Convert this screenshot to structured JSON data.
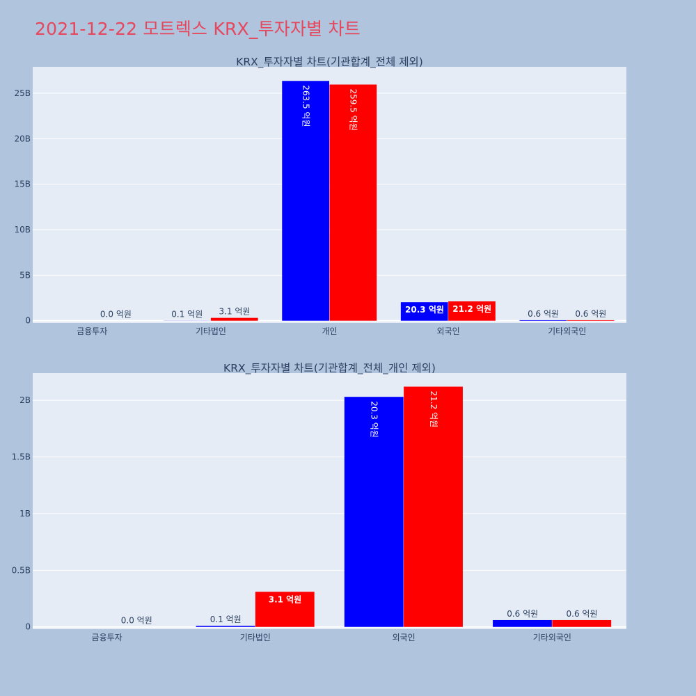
{
  "page_title": "2021-12-22 모트렉스 KRX_투자자별 차트",
  "colors": {
    "background": "#b0c4de",
    "plot_bg": "#e5ecf6",
    "buy": "#0000ff",
    "sell": "#ff0000",
    "title": "#e5475d",
    "text": "#2a3f5f"
  },
  "chart_data": [
    {
      "type": "bar",
      "title": "KRX_투자자별 차트(기관합계_전체 제외)",
      "categories": [
        "금융투자",
        "기타법인",
        "개인",
        "외국인",
        "기타외국인"
      ],
      "ylim": [
        -0.25,
        27.9
      ],
      "y_unit": "B",
      "yticks": [
        0,
        5,
        10,
        15,
        20,
        25
      ],
      "ytick_labels": [
        "0",
        "5B",
        "10B",
        "15B",
        "20B",
        "25B"
      ],
      "series": [
        {
          "color": "#0000ff",
          "values": [
            0.0,
            0.01,
            26.35,
            2.03,
            0.06
          ],
          "labels": [
            "",
            "0.1 억원",
            "263.5 억원",
            "20.3 억원",
            "0.6 억원"
          ]
        },
        {
          "color": "#ff0000",
          "values": [
            0.0,
            0.31,
            25.95,
            2.12,
            0.06
          ],
          "labels": [
            "0.0 억원",
            "3.1 억원",
            "259.5 억원",
            "21.2 억원",
            "0.6 억원"
          ]
        }
      ]
    },
    {
      "type": "bar",
      "title": "KRX_투자자별 차트(기관합계_전체_개인 제외)",
      "categories": [
        "금융투자",
        "기타법인",
        "외국인",
        "기타외국인"
      ],
      "ylim": [
        -0.02,
        2.24
      ],
      "y_unit": "B",
      "yticks": [
        0,
        0.5,
        1,
        1.5,
        2
      ],
      "ytick_labels": [
        "0",
        "0.5B",
        "1B",
        "1.5B",
        "2B"
      ],
      "series": [
        {
          "color": "#0000ff",
          "values": [
            0.0,
            0.01,
            2.03,
            0.06
          ],
          "labels": [
            "",
            "0.1 억원",
            "20.3 억원",
            "0.6 억원"
          ]
        },
        {
          "color": "#ff0000",
          "values": [
            0.0,
            0.31,
            2.12,
            0.06
          ],
          "labels": [
            "0.0 억원",
            "3.1 억원",
            "21.2 억원",
            "0.6 억원"
          ]
        }
      ]
    }
  ]
}
